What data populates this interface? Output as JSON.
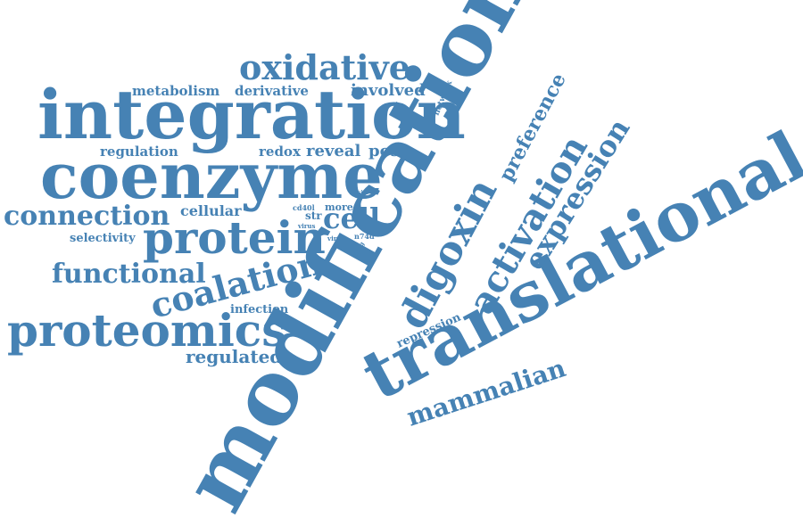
{
  "word_color": "#4682b4",
  "background_color": "#ffffff",
  "words": {
    "modification": "modification",
    "translational": "translational",
    "integration": "integration",
    "coenzyme": "coenzyme",
    "protein": "protein",
    "proteomics": "proteomics",
    "oxidative": "oxidative",
    "connection": "connection",
    "functional": "functional",
    "coalation": "coalation",
    "digoxin": "digoxin",
    "activation": "activation",
    "expression": "expression",
    "mammalian": "mammalian",
    "preference": "preference",
    "metabolism": "metabolism",
    "derivative": "derivative",
    "involved": "involved",
    "regulation": "regulation",
    "redox": "redox",
    "reveal": "reveal",
    "post": "post",
    "cellular": "cellular",
    "cell": "cell",
    "selectivity": "selectivity",
    "infection": "infection",
    "regulated": "regulated",
    "repression": "repression",
    "network": "network",
    "cd40l": "cd40l",
    "str": "str",
    "more": "more",
    "site": "site",
    "virus": "virus",
    "viral": "viral",
    "n74d": "n74d",
    "drug": "drug"
  }
}
